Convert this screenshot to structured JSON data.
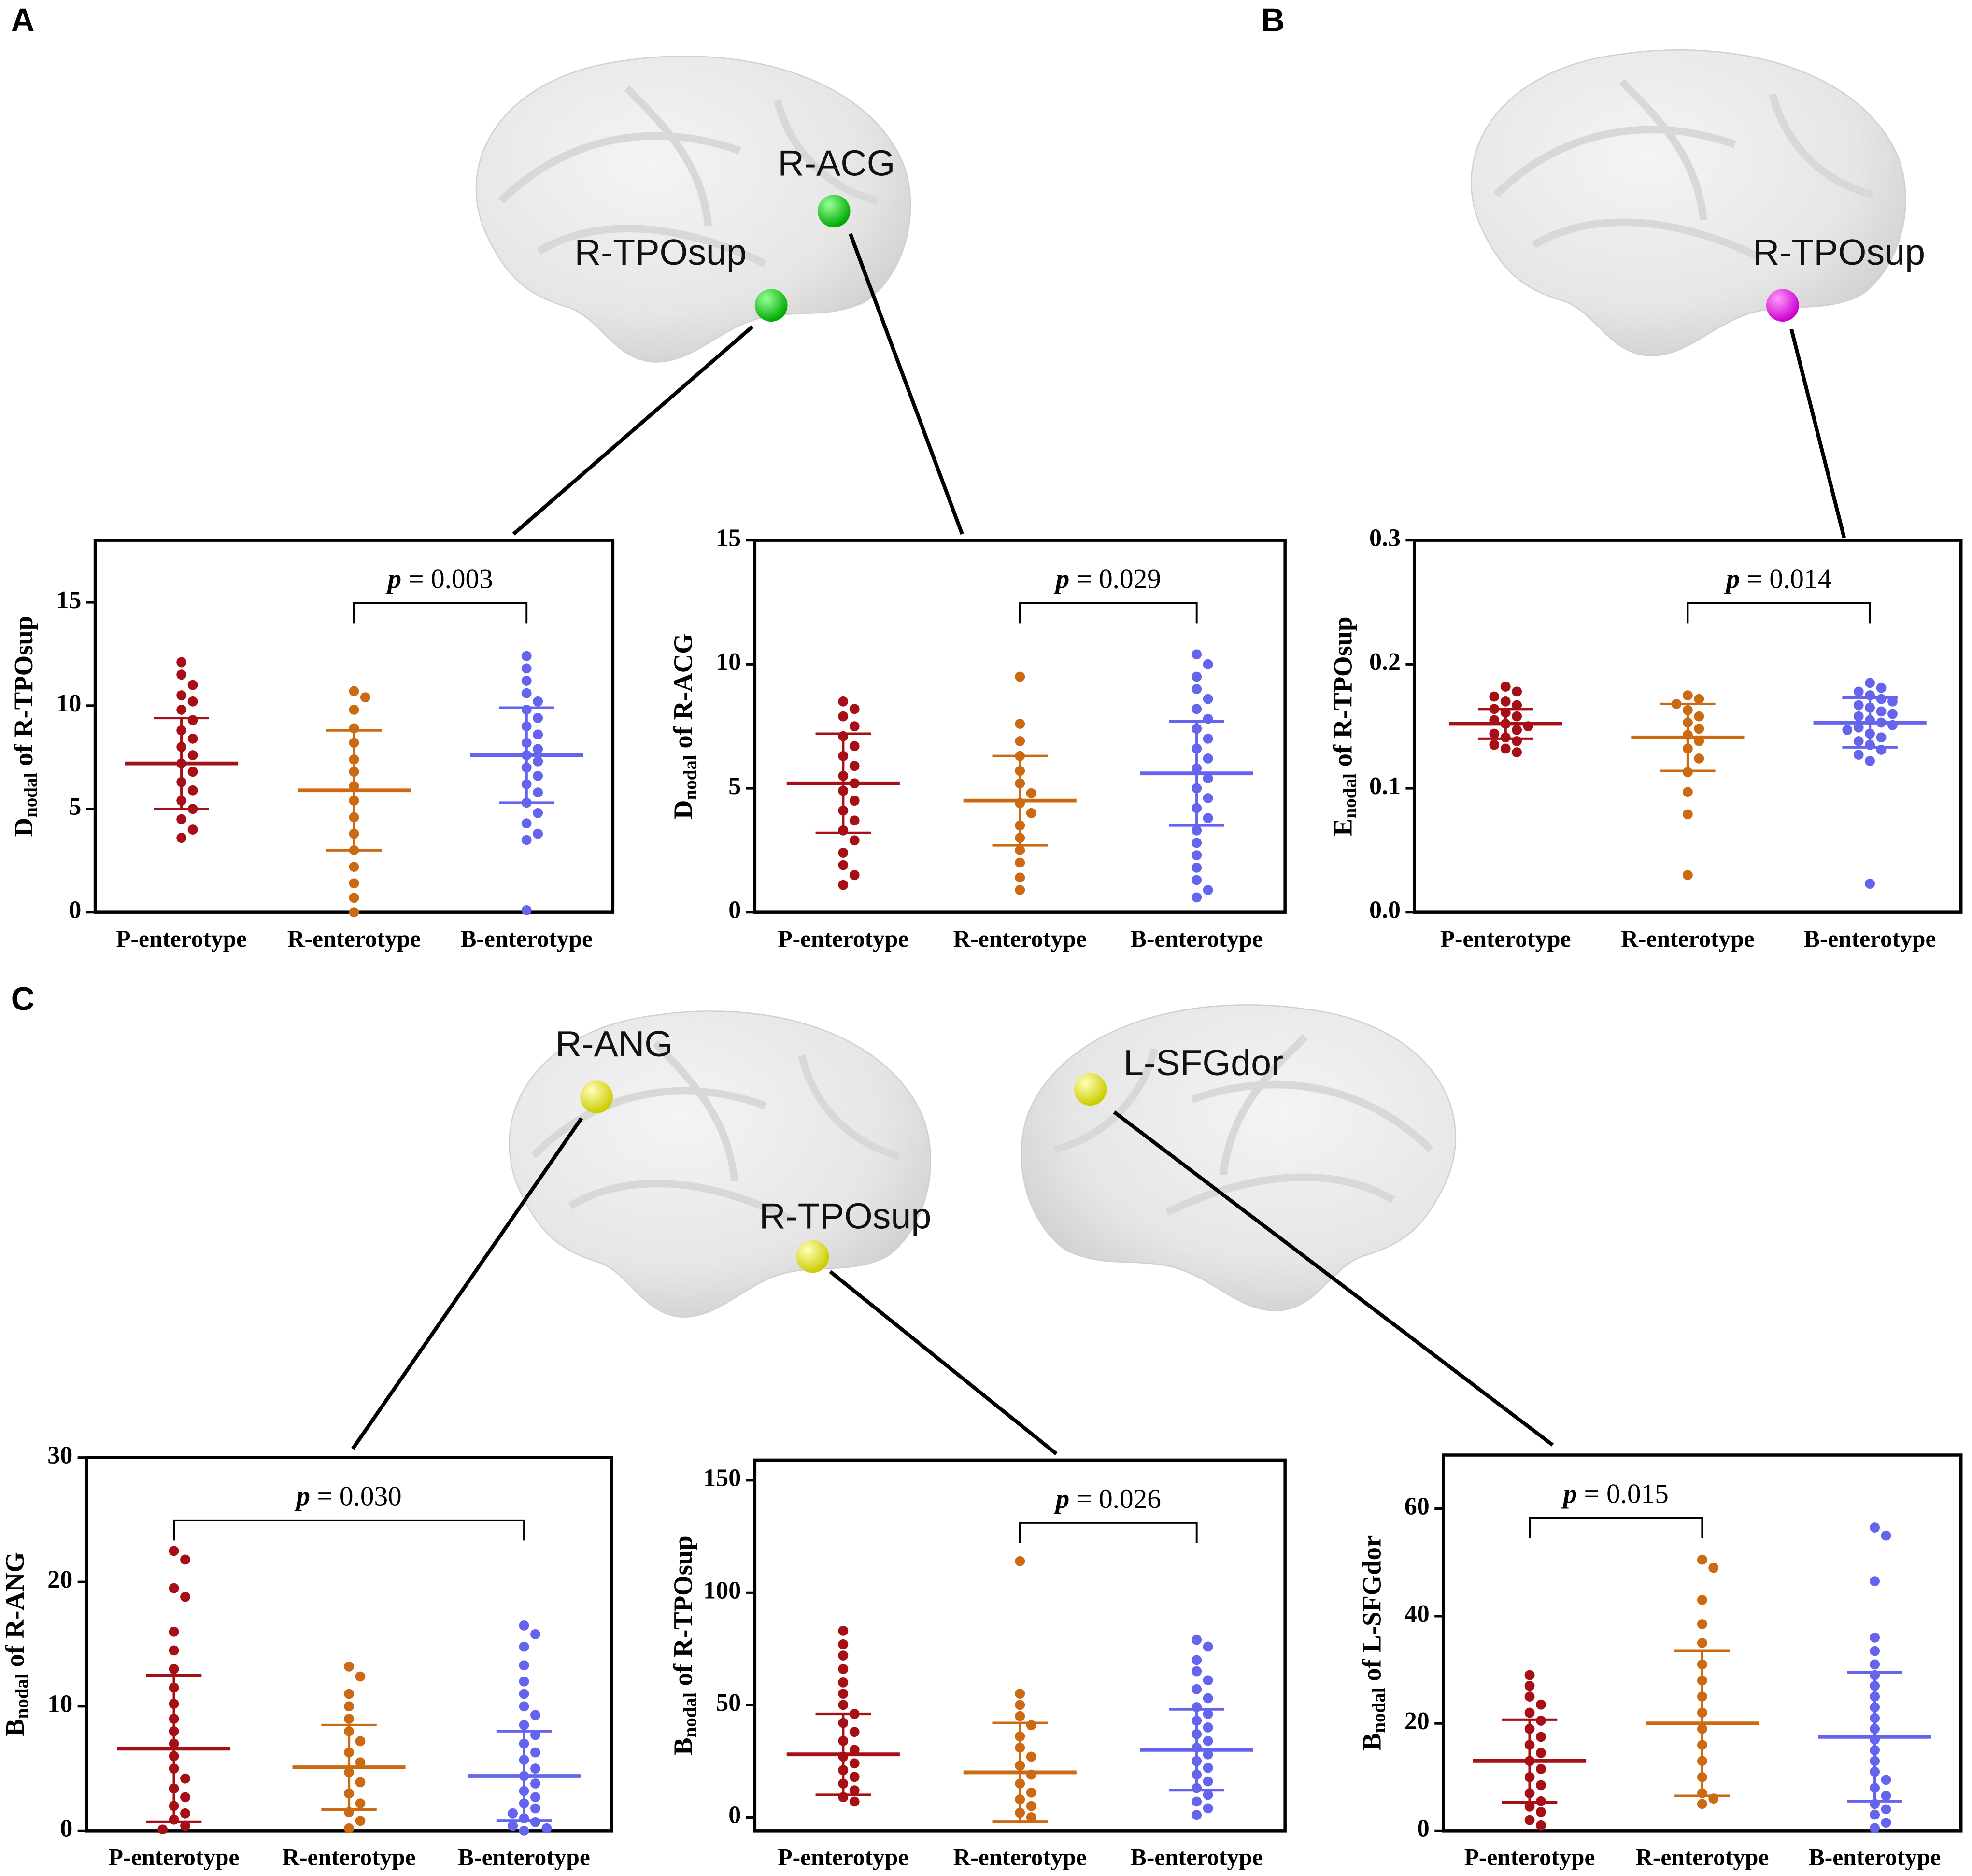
{
  "panels": [
    "A",
    "B",
    "C"
  ],
  "regions": [
    "R-ACG",
    "R-TPOsup",
    "R-TPOsup",
    "R-ANG",
    "R-TPOsup",
    "L-SFGdor"
  ],
  "chart_data": [
    {
      "type": "dotplot",
      "ylabel": [
        "D",
        "nodal",
        " of R-TPOsup"
      ],
      "categories": [
        "P-enterotype",
        "R-enterotype",
        "B-enterotype"
      ],
      "ylim": [
        0,
        18
      ],
      "yticks": [
        0,
        5,
        10,
        15
      ],
      "p_label": "p = 0.003",
      "comparison": [
        1,
        2
      ],
      "groups": [
        {
          "color": "#a50f15",
          "mean": 7.2,
          "sd": 2.2,
          "values": [
            12.1,
            11.5,
            11,
            10.5,
            10.2,
            9.8,
            9.3,
            8.8,
            8.4,
            8,
            7.6,
            7.2,
            6.8,
            6.3,
            5.9,
            5.4,
            5,
            4.5,
            4,
            3.6
          ]
        },
        {
          "color": "#cc6a14",
          "mean": 5.9,
          "sd": 2.9,
          "values": [
            10.7,
            10.4,
            9.8,
            8.9,
            8.2,
            7.4,
            6.8,
            6.1,
            5.4,
            4.6,
            3.8,
            3,
            2.2,
            1.4,
            0.7,
            0
          ]
        },
        {
          "color": "#6464ee",
          "mean": 7.6,
          "sd": 2.3,
          "values": [
            12.4,
            11.8,
            11.2,
            10.6,
            10.2,
            9.8,
            9.4,
            9,
            8.6,
            8.2,
            7.9,
            7.6,
            7.3,
            7,
            6.6,
            6.2,
            5.8,
            5.3,
            4.8,
            4.3,
            3.8,
            3.5,
            0.1
          ]
        }
      ]
    },
    {
      "type": "dotplot",
      "ylabel": [
        "D",
        "nodal",
        " of R-ACG"
      ],
      "categories": [
        "P-enterotype",
        "R-enterotype",
        "B-enterotype"
      ],
      "ylim": [
        0,
        15
      ],
      "yticks": [
        0,
        5,
        10,
        15
      ],
      "p_label": "p = 0.029",
      "comparison": [
        1,
        2
      ],
      "groups": [
        {
          "color": "#a50f15",
          "mean": 5.2,
          "sd": 2.0,
          "values": [
            8.5,
            8.2,
            7.9,
            7.5,
            7.1,
            6.7,
            6.3,
            5.9,
            5.5,
            5.2,
            4.9,
            4.5,
            4.1,
            3.7,
            3.3,
            2.9,
            2.4,
            1.9,
            1.5,
            1.1
          ]
        },
        {
          "color": "#cc6a14",
          "mean": 4.5,
          "sd": 1.8,
          "values": [
            9.5,
            7.6,
            6.9,
            6.3,
            5.7,
            5.2,
            4.8,
            4.4,
            4,
            3.5,
            3,
            2.5,
            2,
            1.4,
            0.9
          ]
        },
        {
          "color": "#6464ee",
          "mean": 5.6,
          "sd": 2.1,
          "values": [
            10.4,
            10,
            9.5,
            9,
            8.6,
            8.2,
            7.8,
            7.4,
            7,
            6.6,
            6.2,
            5.8,
            5.4,
            5,
            4.6,
            4.2,
            3.8,
            3.3,
            2.8,
            2.3,
            1.8,
            1.3,
            0.9,
            0.6
          ]
        }
      ]
    },
    {
      "type": "dotplot",
      "ylabel": [
        "E",
        "nodal",
        " of R-TPOsup"
      ],
      "categories": [
        "P-enterotype",
        "R-enterotype",
        "B-enterotype"
      ],
      "ylim": [
        0,
        0.3
      ],
      "yticks": [
        {
          "value": 0,
          "label": "0.0"
        },
        0.1,
        0.2,
        0.3
      ],
      "p_label": "p = 0.014",
      "comparison": [
        1,
        2
      ],
      "groups": [
        {
          "color": "#a50f15",
          "mean": 0.152,
          "sd": 0.012,
          "values": [
            0.182,
            0.178,
            0.174,
            0.17,
            0.167,
            0.164,
            0.161,
            0.158,
            0.155,
            0.152,
            0.15,
            0.147,
            0.144,
            0.141,
            0.138,
            0.135,
            0.132,
            0.129
          ]
        },
        {
          "color": "#cc6a14",
          "mean": 0.141,
          "sd": 0.027,
          "values": [
            0.175,
            0.172,
            0.168,
            0.163,
            0.158,
            0.153,
            0.148,
            0.143,
            0.138,
            0.132,
            0.124,
            0.113,
            0.097,
            0.079,
            0.03
          ]
        },
        {
          "color": "#6464ee",
          "mean": 0.153,
          "sd": 0.02,
          "values": [
            0.185,
            0.181,
            0.178,
            0.175,
            0.172,
            0.17,
            0.167,
            0.165,
            0.162,
            0.16,
            0.158,
            0.155,
            0.153,
            0.151,
            0.149,
            0.147,
            0.144,
            0.141,
            0.138,
            0.135,
            0.131,
            0.127,
            0.122,
            0.023
          ]
        }
      ]
    },
    {
      "type": "dotplot",
      "ylabel": [
        "B",
        "nodal",
        " of R-ANG"
      ],
      "categories": [
        "P-enterotype",
        "R-enterotype",
        "B-enterotype"
      ],
      "ylim": [
        0,
        30
      ],
      "yticks": [
        0,
        10,
        20,
        30
      ],
      "p_label": "p = 0.030",
      "comparison": [
        0,
        2
      ],
      "groups": [
        {
          "color": "#a50f15",
          "mean": 6.6,
          "sd": 5.9,
          "values": [
            22.5,
            21.8,
            19.5,
            18.8,
            16,
            14.5,
            13,
            11.5,
            10.2,
            9,
            8,
            7,
            6,
            5,
            4.2,
            3.4,
            2.7,
            2,
            1.4,
            0.9,
            0.4,
            0.1
          ]
        },
        {
          "color": "#cc6a14",
          "mean": 5.1,
          "sd": 3.4,
          "values": [
            13.2,
            12.4,
            11,
            10,
            9,
            8,
            7.2,
            6.3,
            5.5,
            4.7,
            3.9,
            3,
            2.2,
            1.5,
            0.8,
            0.2
          ]
        },
        {
          "color": "#6464ee",
          "mean": 4.4,
          "sd": 3.6,
          "values": [
            16.5,
            15.8,
            14.8,
            13.3,
            12,
            11,
            10,
            9.3,
            8.5,
            7.7,
            7,
            6.3,
            5.7,
            5,
            4.4,
            3.8,
            3.2,
            2.7,
            2.2,
            1.8,
            1.4,
            1,
            0.7,
            0.4,
            0.2,
            0
          ]
        }
      ]
    },
    {
      "type": "dotplot",
      "ylabel": [
        "B",
        "nodal",
        " of R-TPOsup"
      ],
      "categories": [
        "P-enterotype",
        "R-enterotype",
        "B-enterotype"
      ],
      "ylim": [
        -6,
        159
      ],
      "yticks": [
        0,
        50,
        100,
        150
      ],
      "p_label": "p = 0.026",
      "comparison": [
        1,
        2
      ],
      "groups": [
        {
          "color": "#a50f15",
          "mean": 28,
          "sd": 18,
          "values": [
            83,
            77,
            72,
            66,
            60,
            55,
            50,
            46,
            42,
            38,
            34,
            30,
            27,
            24,
            21,
            18,
            15,
            12,
            9,
            7
          ]
        },
        {
          "color": "#cc6a14",
          "mean": 20,
          "sd": 22,
          "values": [
            114,
            55,
            50,
            45,
            41,
            36,
            31,
            27,
            23,
            19,
            15,
            11,
            8,
            5,
            2,
            0
          ]
        },
        {
          "color": "#6464ee",
          "mean": 30,
          "sd": 18,
          "values": [
            79,
            76,
            70,
            65,
            61,
            57,
            53,
            49,
            46,
            43,
            40,
            37,
            34,
            31,
            28,
            25,
            22,
            19,
            16,
            13,
            10,
            7,
            4,
            1
          ]
        }
      ]
    },
    {
      "type": "dotplot",
      "ylabel": [
        "B",
        "nodal",
        " of L-SFGdor"
      ],
      "categories": [
        "P-enterotype",
        "R-enterotype",
        "B-enterotype"
      ],
      "ylim": [
        0,
        70
      ],
      "yticks": [
        0,
        20,
        40,
        60
      ],
      "p_label": "p = 0.015",
      "comparison": [
        0,
        1
      ],
      "groups": [
        {
          "color": "#a50f15",
          "mean": 13,
          "sd": 7.7,
          "values": [
            29,
            27,
            25,
            23.5,
            22,
            20.5,
            19,
            17.5,
            16,
            14.5,
            13,
            11.5,
            10,
            8.5,
            7,
            5.5,
            4.5,
            3.5,
            2,
            1
          ]
        },
        {
          "color": "#cc6a14",
          "mean": 20,
          "sd": 13.5,
          "values": [
            50.5,
            49,
            43,
            38.5,
            35,
            31,
            28,
            25,
            22,
            19,
            16,
            13,
            10,
            7,
            6,
            5
          ]
        },
        {
          "color": "#6464ee",
          "mean": 17.5,
          "sd": 12,
          "values": [
            56.5,
            55,
            46.5,
            36,
            33.5,
            31,
            29,
            27,
            25,
            23,
            21,
            19,
            17,
            15,
            13,
            11,
            9.5,
            8,
            6.5,
            5,
            4,
            3,
            1.5,
            0.5
          ]
        }
      ]
    }
  ]
}
